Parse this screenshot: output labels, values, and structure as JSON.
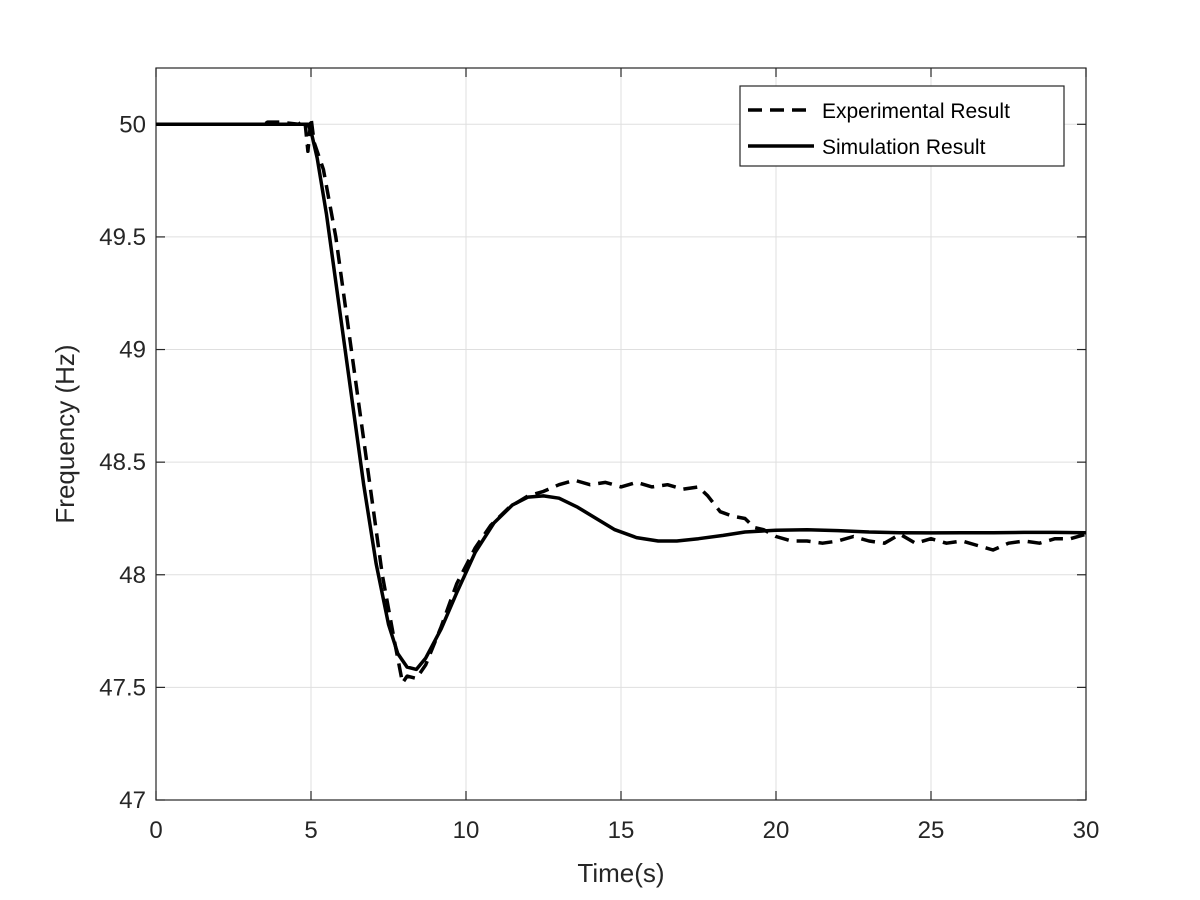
{
  "chart_data": {
    "type": "line",
    "xlabel": "Time(s)",
    "ylabel": "Frequency (Hz)",
    "xlim": [
      0,
      30
    ],
    "ylim": [
      47,
      50.25
    ],
    "x_ticks": [
      0,
      5,
      10,
      15,
      20,
      25,
      30
    ],
    "y_ticks": [
      47,
      47.5,
      48,
      48.5,
      49,
      49.5,
      50
    ],
    "x_tick_labels": [
      "0",
      "5",
      "10",
      "15",
      "20",
      "25",
      "30"
    ],
    "y_tick_labels": [
      "47",
      "47.5",
      "48",
      "48.5",
      "49",
      "49.5",
      "50"
    ],
    "grid": true,
    "legend_position": "top-right",
    "series": [
      {
        "name": "Experimental Result",
        "style": "dashed",
        "color": "#000000",
        "points": [
          [
            0,
            50
          ],
          [
            3.5,
            50
          ],
          [
            3.6,
            50.01
          ],
          [
            4.0,
            50.01
          ],
          [
            4.6,
            50.0
          ],
          [
            4.8,
            50.02
          ],
          [
            4.9,
            49.88
          ],
          [
            5.0,
            50.03
          ],
          [
            5.1,
            49.92
          ],
          [
            5.4,
            49.8
          ],
          [
            5.8,
            49.5
          ],
          [
            6.3,
            49.0
          ],
          [
            6.8,
            48.5
          ],
          [
            7.3,
            48.0
          ],
          [
            7.7,
            47.7
          ],
          [
            7.95,
            47.52
          ],
          [
            8.1,
            47.55
          ],
          [
            8.4,
            47.54
          ],
          [
            8.7,
            47.6
          ],
          [
            9.2,
            47.77
          ],
          [
            9.7,
            47.96
          ],
          [
            10.3,
            48.12
          ],
          [
            10.8,
            48.22
          ],
          [
            11.4,
            48.3
          ],
          [
            12.0,
            48.35
          ],
          [
            12.5,
            48.37
          ],
          [
            13.0,
            48.4
          ],
          [
            13.5,
            48.42
          ],
          [
            14.0,
            48.4
          ],
          [
            14.5,
            48.41
          ],
          [
            15.0,
            48.39
          ],
          [
            15.5,
            48.41
          ],
          [
            16.0,
            48.39
          ],
          [
            16.5,
            48.4
          ],
          [
            17.0,
            48.38
          ],
          [
            17.5,
            48.39
          ],
          [
            17.8,
            48.35
          ],
          [
            18.2,
            48.28
          ],
          [
            18.6,
            48.26
          ],
          [
            19.0,
            48.25
          ],
          [
            19.3,
            48.21
          ],
          [
            19.6,
            48.2
          ],
          [
            20.0,
            48.17
          ],
          [
            20.5,
            48.15
          ],
          [
            21.0,
            48.15
          ],
          [
            21.5,
            48.14
          ],
          [
            22.0,
            48.15
          ],
          [
            22.5,
            48.17
          ],
          [
            23.0,
            48.15
          ],
          [
            23.5,
            48.14
          ],
          [
            24.0,
            48.18
          ],
          [
            24.5,
            48.14
          ],
          [
            25.0,
            48.16
          ],
          [
            25.5,
            48.14
          ],
          [
            26.0,
            48.15
          ],
          [
            26.5,
            48.13
          ],
          [
            27.0,
            48.11
          ],
          [
            27.5,
            48.14
          ],
          [
            28.0,
            48.15
          ],
          [
            28.5,
            48.14
          ],
          [
            29.0,
            48.16
          ],
          [
            29.5,
            48.16
          ],
          [
            30.0,
            48.18
          ]
        ]
      },
      {
        "name": "Simulation Result",
        "style": "solid",
        "color": "#000000",
        "points": [
          [
            0,
            50
          ],
          [
            4.9,
            50
          ],
          [
            5.0,
            49.97
          ],
          [
            5.2,
            49.85
          ],
          [
            5.5,
            49.6
          ],
          [
            5.9,
            49.2
          ],
          [
            6.3,
            48.8
          ],
          [
            6.7,
            48.4
          ],
          [
            7.1,
            48.05
          ],
          [
            7.5,
            47.78
          ],
          [
            7.8,
            47.65
          ],
          [
            8.1,
            47.59
          ],
          [
            8.4,
            47.58
          ],
          [
            8.7,
            47.63
          ],
          [
            9.2,
            47.76
          ],
          [
            9.7,
            47.92
          ],
          [
            10.3,
            48.1
          ],
          [
            10.9,
            48.23
          ],
          [
            11.5,
            48.31
          ],
          [
            12.0,
            48.345
          ],
          [
            12.5,
            48.35
          ],
          [
            13.0,
            48.34
          ],
          [
            13.6,
            48.3
          ],
          [
            14.2,
            48.25
          ],
          [
            14.8,
            48.2
          ],
          [
            15.5,
            48.165
          ],
          [
            16.2,
            48.15
          ],
          [
            16.8,
            48.15
          ],
          [
            17.5,
            48.16
          ],
          [
            18.3,
            48.175
          ],
          [
            19.0,
            48.19
          ],
          [
            20.0,
            48.198
          ],
          [
            21.0,
            48.2
          ],
          [
            22.0,
            48.196
          ],
          [
            23.0,
            48.19
          ],
          [
            24.0,
            48.187
          ],
          [
            25.0,
            48.186
          ],
          [
            26.0,
            48.187
          ],
          [
            27.0,
            48.187
          ],
          [
            28.0,
            48.188
          ],
          [
            29.0,
            48.188
          ],
          [
            30.0,
            48.187
          ]
        ]
      }
    ]
  }
}
